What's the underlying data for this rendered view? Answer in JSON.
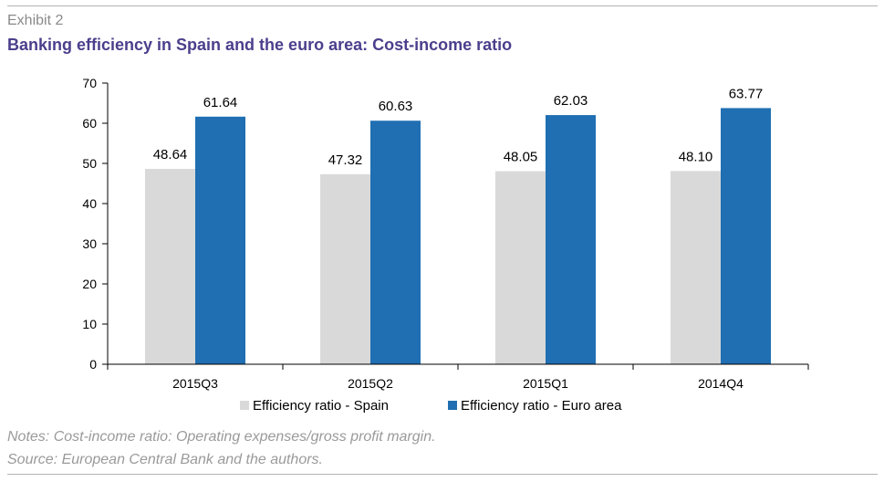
{
  "header": {
    "exhibit_label": "Exhibit 2",
    "title": "Banking efficiency in Spain and the euro area: Cost-income ratio"
  },
  "notes": {
    "note": "Notes: Cost-income ratio: Operating expenses/gross profit margin.",
    "source": "Source: European Central Bank and the authors."
  },
  "colors": {
    "spain": "#d9d9d9",
    "euro_area": "#1f6fb2",
    "title": "#4b3f8c"
  },
  "chart_data": {
    "type": "bar",
    "title": "Banking efficiency in Spain and the euro area: Cost-income ratio",
    "xlabel": "",
    "ylabel": "",
    "categories": [
      "2015Q3",
      "2015Q2",
      "2015Q1",
      "2014Q4"
    ],
    "series": [
      {
        "name": "Efficiency ratio - Spain",
        "values": [
          48.64,
          47.32,
          48.05,
          48.1
        ],
        "labels": [
          "48.64",
          "47.32",
          "48.05",
          "48.10"
        ],
        "color": "#d9d9d9"
      },
      {
        "name": "Efficiency ratio - Euro area",
        "values": [
          61.64,
          60.63,
          62.03,
          63.77
        ],
        "labels": [
          "61.64",
          "60.63",
          "62.03",
          "63.77"
        ],
        "color": "#1f6fb2"
      }
    ],
    "ylim": [
      0,
      70
    ],
    "yticks": [
      0,
      10,
      20,
      30,
      40,
      50,
      60,
      70
    ],
    "grid": false,
    "legend_position": "bottom"
  }
}
